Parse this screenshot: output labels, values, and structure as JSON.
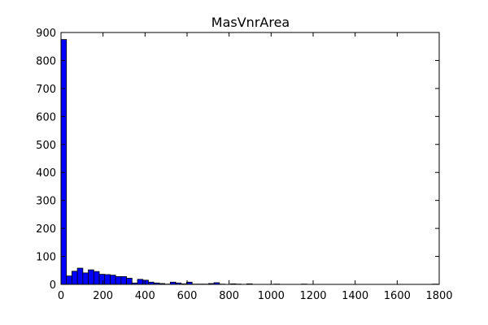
{
  "chart_data": {
    "type": "bar",
    "title": "MasVnrArea",
    "xlabel": "",
    "ylabel": "",
    "xlim": [
      0,
      1800
    ],
    "ylim": [
      0,
      900
    ],
    "x_ticks": [
      0,
      200,
      400,
      600,
      800,
      1000,
      1200,
      1400,
      1600,
      1800
    ],
    "y_ticks": [
      0,
      100,
      200,
      300,
      400,
      500,
      600,
      700,
      800,
      900
    ],
    "grid": false,
    "legend": "none",
    "bar_color": "#0000ff",
    "bin_edges": [
      0,
      26,
      52,
      78,
      104,
      130,
      156,
      182,
      208,
      234,
      260,
      286,
      312,
      338,
      364,
      390,
      416,
      442,
      468,
      494,
      520,
      546,
      572,
      598,
      624,
      650,
      676,
      702,
      728,
      754,
      780,
      806,
      832,
      858,
      884,
      910,
      936,
      962,
      988,
      1014,
      1040,
      1066,
      1092,
      1118,
      1144,
      1170,
      1196,
      1222,
      1248,
      1274,
      1300,
      1326,
      1352,
      1378,
      1404,
      1430,
      1456,
      1482,
      1508,
      1534,
      1560,
      1586,
      1612,
      1638,
      1664,
      1690,
      1716,
      1742,
      1768,
      1794
    ],
    "counts": [
      875,
      30,
      47,
      58,
      41,
      52,
      46,
      36,
      35,
      33,
      28,
      28,
      22,
      5,
      18,
      15,
      8,
      5,
      3,
      1,
      8,
      5,
      2,
      8,
      1,
      1,
      1,
      3,
      6,
      1,
      0,
      2,
      1,
      0,
      2,
      0,
      0,
      0,
      0,
      1,
      0,
      0,
      0,
      0,
      1,
      0,
      0,
      0,
      0,
      0,
      0,
      0,
      0,
      0,
      0,
      0,
      0,
      0,
      0,
      0,
      0,
      0,
      0,
      0,
      0,
      0,
      0,
      0,
      1
    ]
  }
}
